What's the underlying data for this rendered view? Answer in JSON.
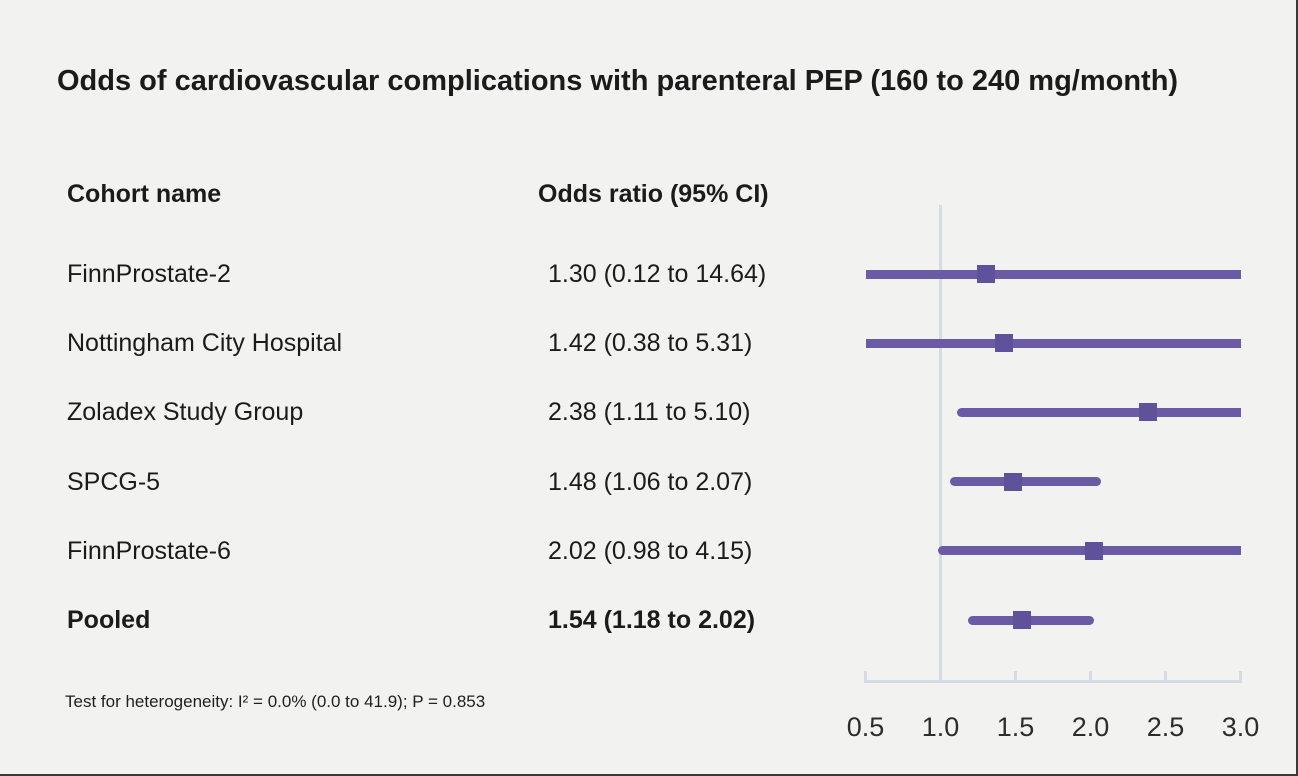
{
  "chart_data": {
    "type": "forest",
    "title": "Odds of cardiovascular complications with parenteral PEP (160 to 240 mg/month)",
    "columns": {
      "cohort": "Cohort name",
      "odds_ratio": "Odds ratio (95% CI)"
    },
    "rows": [
      {
        "label": "FinnProstate-2",
        "or": 1.3,
        "ci_low": 0.12,
        "ci_high": 14.64,
        "or_text": "1.30 (0.12 to 14.64)",
        "bold": false
      },
      {
        "label": "Nottingham City Hospital",
        "or": 1.42,
        "ci_low": 0.38,
        "ci_high": 5.31,
        "or_text": "1.42 (0.38 to 5.31)",
        "bold": false
      },
      {
        "label": "Zoladex Study Group",
        "or": 2.38,
        "ci_low": 1.11,
        "ci_high": 5.1,
        "or_text": "2.38 (1.11 to 5.10)",
        "bold": false
      },
      {
        "label": "SPCG-5",
        "or": 1.48,
        "ci_low": 1.06,
        "ci_high": 2.07,
        "or_text": "1.48 (1.06 to 2.07)",
        "bold": false
      },
      {
        "label": "FinnProstate-6",
        "or": 2.02,
        "ci_low": 0.98,
        "ci_high": 4.15,
        "or_text": "2.02 (0.98 to 4.15)",
        "bold": false
      },
      {
        "label": "Pooled",
        "or": 1.54,
        "ci_low": 1.18,
        "ci_high": 2.02,
        "or_text": "1.54 (1.18 to 2.02)",
        "bold": true
      }
    ],
    "footnote": "Test for heterogeneity: I² = 0.0% (0.0 to 41.9); P = 0.853",
    "axis": {
      "min": 0.5,
      "max": 3.0,
      "reference": 1.0,
      "scale": "linear",
      "ticks": [
        0.5,
        1.0,
        1.5,
        2.0,
        2.5,
        3.0
      ],
      "tick_labels": [
        "0.5",
        "1.0",
        "1.5",
        "2.0",
        "2.5",
        "3.0"
      ]
    },
    "colors": {
      "ci_line": "#6a5ba4",
      "marker": "#60519b",
      "axis": "#d6dae2",
      "reference_line": "#d6dae2",
      "background": "#f2f2f1",
      "text": "#1b1b1b"
    }
  }
}
